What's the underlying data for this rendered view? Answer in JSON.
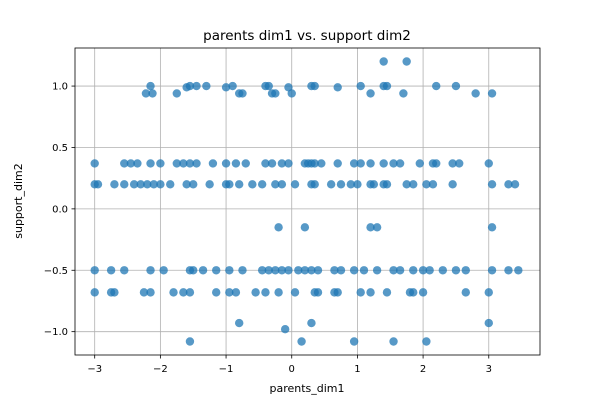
{
  "chart_data": {
    "type": "scatter",
    "title": "parents dim1 vs. support dim2",
    "xlabel": "parents_dim1",
    "ylabel": "support_dim2",
    "xlim": [
      -3.3,
      3.78
    ],
    "ylim": [
      -1.19,
      1.31
    ],
    "xticks": [
      -3,
      -2,
      -1,
      0,
      1,
      2,
      3
    ],
    "yticks": [
      -1.0,
      -0.5,
      0.0,
      0.5,
      1.0
    ],
    "xtick_labels": [
      "−3",
      "−2",
      "−1",
      "0",
      "1",
      "2",
      "3"
    ],
    "ytick_labels": [
      "−1.0",
      "−0.5",
      "0.0",
      "0.5",
      "1.0"
    ],
    "grid": true,
    "marker_color": "#1f77b4",
    "marker_alpha": 0.75,
    "points": [
      {
        "x": -2.22,
        "y": 0.94
      },
      {
        "x": -2.15,
        "y": 1.0
      },
      {
        "x": -2.12,
        "y": 0.94
      },
      {
        "x": -1.75,
        "y": 0.94
      },
      {
        "x": -1.6,
        "y": 0.99
      },
      {
        "x": -1.55,
        "y": 1.0
      },
      {
        "x": -1.45,
        "y": 1.0
      },
      {
        "x": -1.3,
        "y": 1.0
      },
      {
        "x": -1.0,
        "y": 0.99
      },
      {
        "x": -0.9,
        "y": 1.0
      },
      {
        "x": -0.8,
        "y": 0.94
      },
      {
        "x": -0.75,
        "y": 0.94
      },
      {
        "x": -0.4,
        "y": 1.0
      },
      {
        "x": -0.35,
        "y": 1.0
      },
      {
        "x": -0.3,
        "y": 0.94
      },
      {
        "x": -0.25,
        "y": 0.94
      },
      {
        "x": -0.05,
        "y": 0.99
      },
      {
        "x": 0.0,
        "y": 0.94
      },
      {
        "x": 0.3,
        "y": 1.0
      },
      {
        "x": 0.35,
        "y": 1.0
      },
      {
        "x": 0.7,
        "y": 0.99
      },
      {
        "x": 1.05,
        "y": 1.0
      },
      {
        "x": 1.2,
        "y": 0.94
      },
      {
        "x": 1.4,
        "y": 1.0
      },
      {
        "x": 1.4,
        "y": 1.2
      },
      {
        "x": 1.45,
        "y": 1.0
      },
      {
        "x": 1.7,
        "y": 0.94
      },
      {
        "x": 1.75,
        "y": 1.2
      },
      {
        "x": 2.2,
        "y": 1.0
      },
      {
        "x": 2.5,
        "y": 1.0
      },
      {
        "x": 2.8,
        "y": 0.94
      },
      {
        "x": 3.05,
        "y": 0.94
      },
      {
        "x": -3.0,
        "y": 0.37
      },
      {
        "x": -2.55,
        "y": 0.37
      },
      {
        "x": -2.45,
        "y": 0.37
      },
      {
        "x": -2.35,
        "y": 0.37
      },
      {
        "x": -2.15,
        "y": 0.37
      },
      {
        "x": -2.0,
        "y": 0.37
      },
      {
        "x": -1.75,
        "y": 0.37
      },
      {
        "x": -1.65,
        "y": 0.37
      },
      {
        "x": -1.55,
        "y": 0.37
      },
      {
        "x": -1.45,
        "y": 0.37
      },
      {
        "x": -1.2,
        "y": 0.37
      },
      {
        "x": -1.0,
        "y": 0.37
      },
      {
        "x": -0.85,
        "y": 0.37
      },
      {
        "x": -0.7,
        "y": 0.37
      },
      {
        "x": -0.4,
        "y": 0.37
      },
      {
        "x": -0.3,
        "y": 0.37
      },
      {
        "x": -0.15,
        "y": 0.37
      },
      {
        "x": -0.05,
        "y": 0.37
      },
      {
        "x": 0.2,
        "y": 0.37
      },
      {
        "x": 0.25,
        "y": 0.37
      },
      {
        "x": 0.3,
        "y": 0.37
      },
      {
        "x": 0.35,
        "y": 0.37
      },
      {
        "x": 0.45,
        "y": 0.37
      },
      {
        "x": 0.7,
        "y": 0.37
      },
      {
        "x": 0.95,
        "y": 0.37
      },
      {
        "x": 1.05,
        "y": 0.37
      },
      {
        "x": 1.2,
        "y": 0.37
      },
      {
        "x": 1.4,
        "y": 0.37
      },
      {
        "x": 1.55,
        "y": 0.37
      },
      {
        "x": 1.65,
        "y": 0.37
      },
      {
        "x": 1.95,
        "y": 0.37
      },
      {
        "x": 2.15,
        "y": 0.37
      },
      {
        "x": 2.2,
        "y": 0.37
      },
      {
        "x": 2.45,
        "y": 0.37
      },
      {
        "x": 2.55,
        "y": 0.37
      },
      {
        "x": 3.0,
        "y": 0.37
      },
      {
        "x": -3.0,
        "y": 0.2
      },
      {
        "x": -2.95,
        "y": 0.2
      },
      {
        "x": -2.7,
        "y": 0.2
      },
      {
        "x": -2.55,
        "y": 0.2
      },
      {
        "x": -2.4,
        "y": 0.2
      },
      {
        "x": -2.3,
        "y": 0.2
      },
      {
        "x": -2.2,
        "y": 0.2
      },
      {
        "x": -2.1,
        "y": 0.2
      },
      {
        "x": -2.0,
        "y": 0.2
      },
      {
        "x": -1.85,
        "y": 0.2
      },
      {
        "x": -1.6,
        "y": 0.2
      },
      {
        "x": -1.5,
        "y": 0.2
      },
      {
        "x": -1.25,
        "y": 0.2
      },
      {
        "x": -1.0,
        "y": 0.2
      },
      {
        "x": -0.95,
        "y": 0.2
      },
      {
        "x": -0.8,
        "y": 0.2
      },
      {
        "x": -0.6,
        "y": 0.2
      },
      {
        "x": -0.45,
        "y": 0.2
      },
      {
        "x": -0.25,
        "y": 0.2
      },
      {
        "x": -0.15,
        "y": 0.2
      },
      {
        "x": 0.05,
        "y": 0.2
      },
      {
        "x": 0.3,
        "y": 0.2
      },
      {
        "x": 0.35,
        "y": 0.2
      },
      {
        "x": 0.6,
        "y": 0.2
      },
      {
        "x": 0.75,
        "y": 0.2
      },
      {
        "x": 0.9,
        "y": 0.2
      },
      {
        "x": 1.0,
        "y": 0.2
      },
      {
        "x": 1.2,
        "y": 0.2
      },
      {
        "x": 1.25,
        "y": 0.2
      },
      {
        "x": 1.4,
        "y": 0.2
      },
      {
        "x": 1.45,
        "y": 0.2
      },
      {
        "x": 1.75,
        "y": 0.2
      },
      {
        "x": 1.85,
        "y": 0.2
      },
      {
        "x": 2.05,
        "y": 0.2
      },
      {
        "x": 2.15,
        "y": 0.2
      },
      {
        "x": 2.45,
        "y": 0.2
      },
      {
        "x": 3.05,
        "y": 0.2
      },
      {
        "x": 3.3,
        "y": 0.2
      },
      {
        "x": 3.4,
        "y": 0.2
      },
      {
        "x": 0.2,
        "y": -0.15
      },
      {
        "x": 1.2,
        "y": -0.15
      },
      {
        "x": 1.3,
        "y": -0.15
      },
      {
        "x": 3.05,
        "y": -0.15
      },
      {
        "x": -0.2,
        "y": -0.15
      },
      {
        "x": -3.0,
        "y": -0.5
      },
      {
        "x": -2.75,
        "y": -0.5
      },
      {
        "x": -2.55,
        "y": -0.5
      },
      {
        "x": -2.15,
        "y": -0.5
      },
      {
        "x": -1.95,
        "y": -0.5
      },
      {
        "x": -1.55,
        "y": -0.5
      },
      {
        "x": -1.5,
        "y": -0.5
      },
      {
        "x": -1.35,
        "y": -0.5
      },
      {
        "x": -1.15,
        "y": -0.5
      },
      {
        "x": -0.95,
        "y": -0.5
      },
      {
        "x": -0.75,
        "y": -0.5
      },
      {
        "x": -0.45,
        "y": -0.5
      },
      {
        "x": -0.35,
        "y": -0.5
      },
      {
        "x": -0.25,
        "y": -0.5
      },
      {
        "x": -0.15,
        "y": -0.5
      },
      {
        "x": -0.05,
        "y": -0.5
      },
      {
        "x": 0.1,
        "y": -0.5
      },
      {
        "x": 0.2,
        "y": -0.5
      },
      {
        "x": 0.3,
        "y": -0.5
      },
      {
        "x": 0.4,
        "y": -0.5
      },
      {
        "x": 0.65,
        "y": -0.5
      },
      {
        "x": 0.75,
        "y": -0.5
      },
      {
        "x": 0.95,
        "y": -0.5
      },
      {
        "x": 1.1,
        "y": -0.5
      },
      {
        "x": 1.3,
        "y": -0.5
      },
      {
        "x": 1.55,
        "y": -0.5
      },
      {
        "x": 1.65,
        "y": -0.5
      },
      {
        "x": 1.85,
        "y": -0.5
      },
      {
        "x": 2.0,
        "y": -0.5
      },
      {
        "x": 2.1,
        "y": -0.5
      },
      {
        "x": 2.3,
        "y": -0.5
      },
      {
        "x": 2.5,
        "y": -0.5
      },
      {
        "x": 2.65,
        "y": -0.5
      },
      {
        "x": 3.05,
        "y": -0.5
      },
      {
        "x": 3.3,
        "y": -0.5
      },
      {
        "x": 3.45,
        "y": -0.5
      },
      {
        "x": -3.0,
        "y": -0.68
      },
      {
        "x": -2.75,
        "y": -0.68
      },
      {
        "x": -2.7,
        "y": -0.68
      },
      {
        "x": -2.25,
        "y": -0.68
      },
      {
        "x": -2.15,
        "y": -0.68
      },
      {
        "x": -1.8,
        "y": -0.68
      },
      {
        "x": -1.65,
        "y": -0.68
      },
      {
        "x": -1.55,
        "y": -0.68
      },
      {
        "x": -1.15,
        "y": -0.68
      },
      {
        "x": -0.95,
        "y": -0.68
      },
      {
        "x": -0.85,
        "y": -0.68
      },
      {
        "x": -0.55,
        "y": -0.68
      },
      {
        "x": -0.4,
        "y": -0.68
      },
      {
        "x": -0.2,
        "y": -0.68
      },
      {
        "x": 0.05,
        "y": -0.68
      },
      {
        "x": 0.35,
        "y": -0.68
      },
      {
        "x": 0.4,
        "y": -0.68
      },
      {
        "x": 0.65,
        "y": -0.68
      },
      {
        "x": 0.7,
        "y": -0.68
      },
      {
        "x": 1.05,
        "y": -0.68
      },
      {
        "x": 1.2,
        "y": -0.68
      },
      {
        "x": 1.45,
        "y": -0.68
      },
      {
        "x": 1.8,
        "y": -0.68
      },
      {
        "x": 1.85,
        "y": -0.68
      },
      {
        "x": 2.0,
        "y": -0.68
      },
      {
        "x": 2.65,
        "y": -0.68
      },
      {
        "x": 3.0,
        "y": -0.68
      },
      {
        "x": -0.8,
        "y": -0.93
      },
      {
        "x": 0.3,
        "y": -0.93
      },
      {
        "x": 3.0,
        "y": -0.93
      },
      {
        "x": -0.1,
        "y": -0.98
      },
      {
        "x": -1.55,
        "y": -1.08
      },
      {
        "x": 0.15,
        "y": -1.08
      },
      {
        "x": 0.95,
        "y": -1.08
      },
      {
        "x": 1.55,
        "y": -1.08
      },
      {
        "x": 2.05,
        "y": -1.08
      }
    ]
  }
}
